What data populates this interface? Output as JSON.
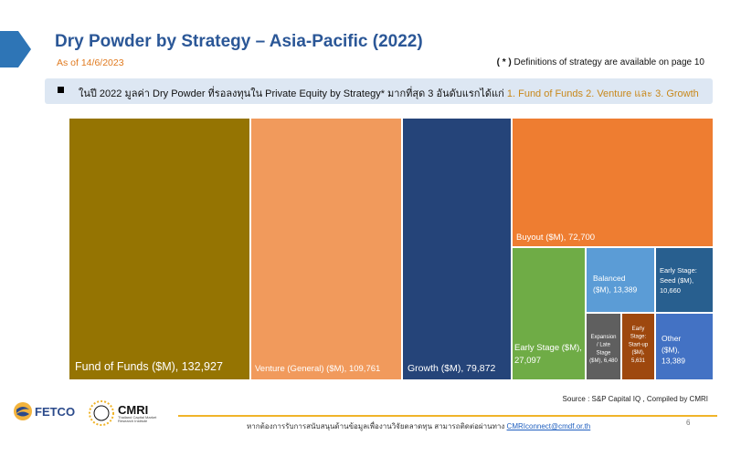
{
  "header": {
    "title": "Dry Powder by Strategy – Asia-Pacific (2022)",
    "as_of": "As of 14/6/2023",
    "note_paren": "( * )",
    "note_text": "Definitions of strategy are available on page 10"
  },
  "banner": {
    "text_prefix": "ในปี 2022 มูลค่า Dry Powder ที่รอลงทุนใน Private Equity by Strategy* มากที่สุด 3 อันดับแรกได้แก่",
    "text_highlight": "1. Fund of Funds 2. Venture และ 3. Growth"
  },
  "chart_data": {
    "type": "treemap",
    "unit": "$M",
    "items": [
      {
        "label": "Fund of Funds ($M), 132,927",
        "value": 132927,
        "color": "#957402"
      },
      {
        "label": "Venture (General) ($M), 109,761",
        "value": 109761,
        "color": "#f19a5c"
      },
      {
        "label": "Growth ($M), 79,872",
        "value": 79872,
        "color": "#254479"
      },
      {
        "label": "Buyout ($M), 72,700",
        "value": 72700,
        "color": "#ee7d31"
      },
      {
        "label": "Early Stage ($M), 27,097",
        "value": 27097,
        "color": "#6fac46"
      },
      {
        "label": "Balanced ($M), 13,389",
        "value": 13389,
        "color": "#5b9cd6"
      },
      {
        "label": "Early Stage: Seed ($M), 10,660",
        "value": 10660,
        "color": "#285f8f"
      },
      {
        "label": "Other ($M), 13,389",
        "value": 13389,
        "color": "#4372c4"
      },
      {
        "label": "Expansion / Late Stage ($M), 6,480",
        "value": 6480,
        "color": "#5f5f5f"
      },
      {
        "label": "Early Stage: Start-up ($M), 5,631",
        "value": 5631,
        "color": "#9e480e"
      }
    ]
  },
  "source": "Source : S&P Capital IQ , Compiled by CMRI",
  "footer": {
    "text": "หากต้องการรับการสนับสนุนด้านข้อมูลเพื่องานวิจัยตลาดทุน สามารถติดต่อผ่านทาง",
    "email": "CMRIconnect@cmdf.or.th",
    "page_number": "6"
  },
  "logos": {
    "fetco": "FETCO",
    "cmri": "CMRI",
    "cmri_sub": "Thailand Capital Market Research Institute"
  },
  "colors": {
    "title": "#2b5797",
    "accent_orange": "#e07a1f",
    "banner_bg": "#dde7f3",
    "footer_line": "#f0b429"
  }
}
